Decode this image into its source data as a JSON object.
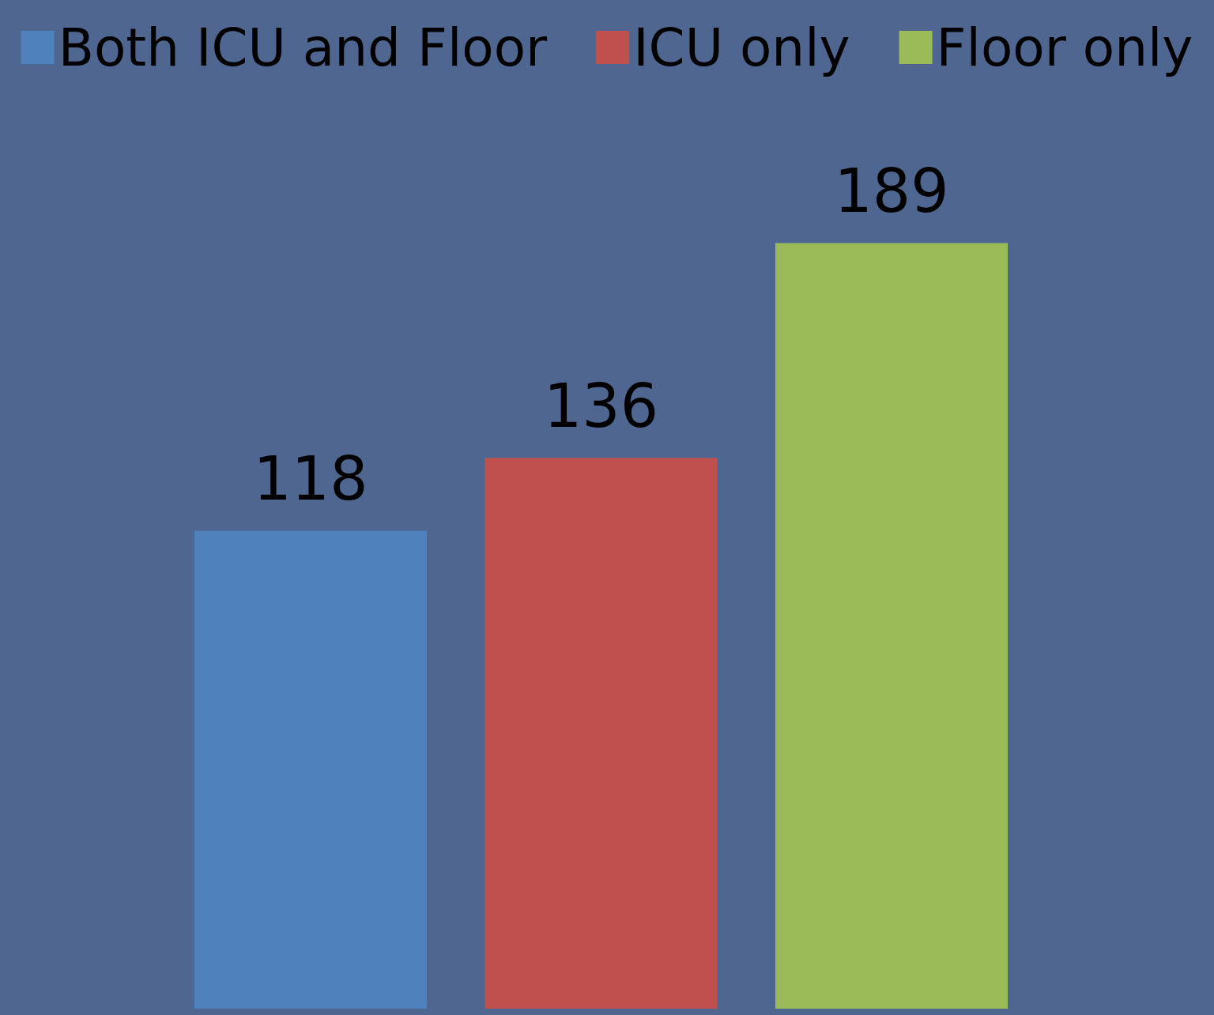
{
  "chart_data": {
    "type": "bar",
    "categories": [
      null
    ],
    "series": [
      {
        "name": "Both ICU and Floor",
        "color": "#4f81bd",
        "values": [
          118
        ]
      },
      {
        "name": "ICU only",
        "color": "#c0504d",
        "values": [
          136
        ]
      },
      {
        "name": "Floor only",
        "color": "#9bbb59",
        "values": [
          189
        ]
      }
    ],
    "data_labels": true,
    "legend": "top"
  }
}
